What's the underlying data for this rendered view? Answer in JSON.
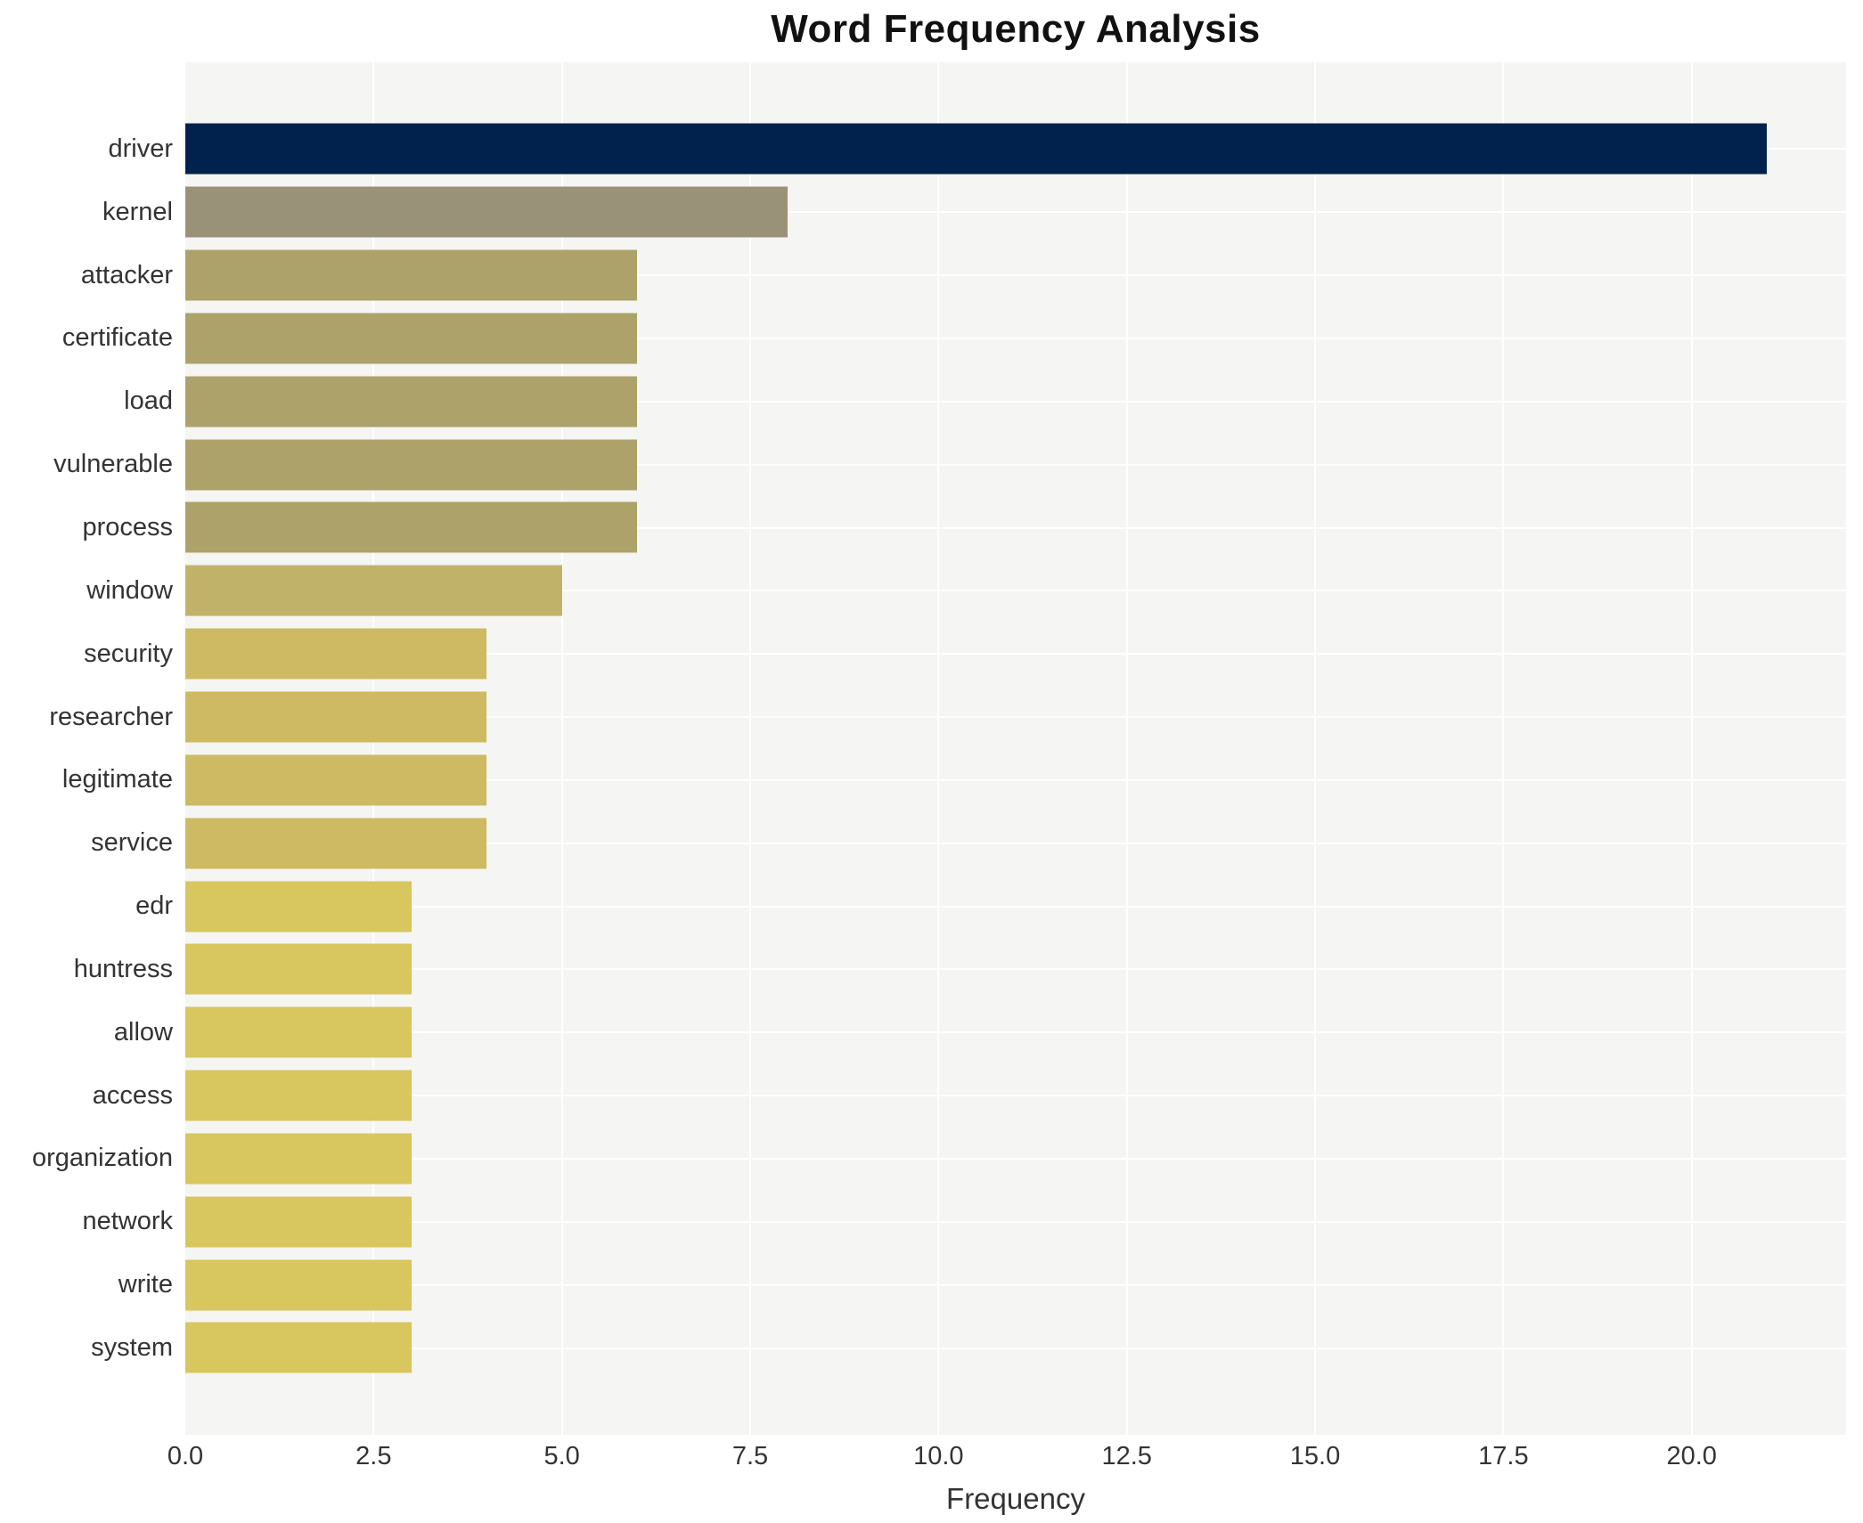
{
  "chart_data": {
    "type": "bar",
    "orientation": "horizontal",
    "title": "Word Frequency Analysis",
    "xlabel": "Frequency",
    "ylabel": "",
    "categories": [
      "driver",
      "kernel",
      "attacker",
      "certificate",
      "load",
      "vulnerable",
      "process",
      "window",
      "security",
      "researcher",
      "legitimate",
      "service",
      "edr",
      "huntress",
      "allow",
      "access",
      "organization",
      "network",
      "write",
      "system"
    ],
    "values": [
      21,
      8,
      6,
      6,
      6,
      6,
      6,
      5,
      4,
      4,
      4,
      4,
      3,
      3,
      3,
      3,
      3,
      3,
      3,
      3
    ],
    "bar_colors": [
      "#02224e",
      "#9a9179",
      "#ada269",
      "#ada269",
      "#ada269",
      "#ada269",
      "#ada269",
      "#c0b369",
      "#cdba62",
      "#cdba62",
      "#cdba62",
      "#cdba62",
      "#d8c65e",
      "#d8c65e",
      "#d8c65e",
      "#d8c65e",
      "#d8c65e",
      "#d8c65e",
      "#d8c65e",
      "#d8c65e"
    ],
    "xticks": [
      0.0,
      2.5,
      5.0,
      7.5,
      10.0,
      12.5,
      15.0,
      17.5,
      20.0
    ],
    "xtick_labels": [
      "0.0",
      "2.5",
      "5.0",
      "7.5",
      "10.0",
      "12.5",
      "15.0",
      "17.5",
      "20.0"
    ],
    "xlim": [
      0,
      22.05
    ],
    "grid": true,
    "legend": false,
    "colors": {
      "figure_background": "#ffffff",
      "plot_background": "#f5f5f4",
      "grid_color": "#ffffff",
      "text_color": "#333333",
      "title_color": "#111111"
    }
  }
}
